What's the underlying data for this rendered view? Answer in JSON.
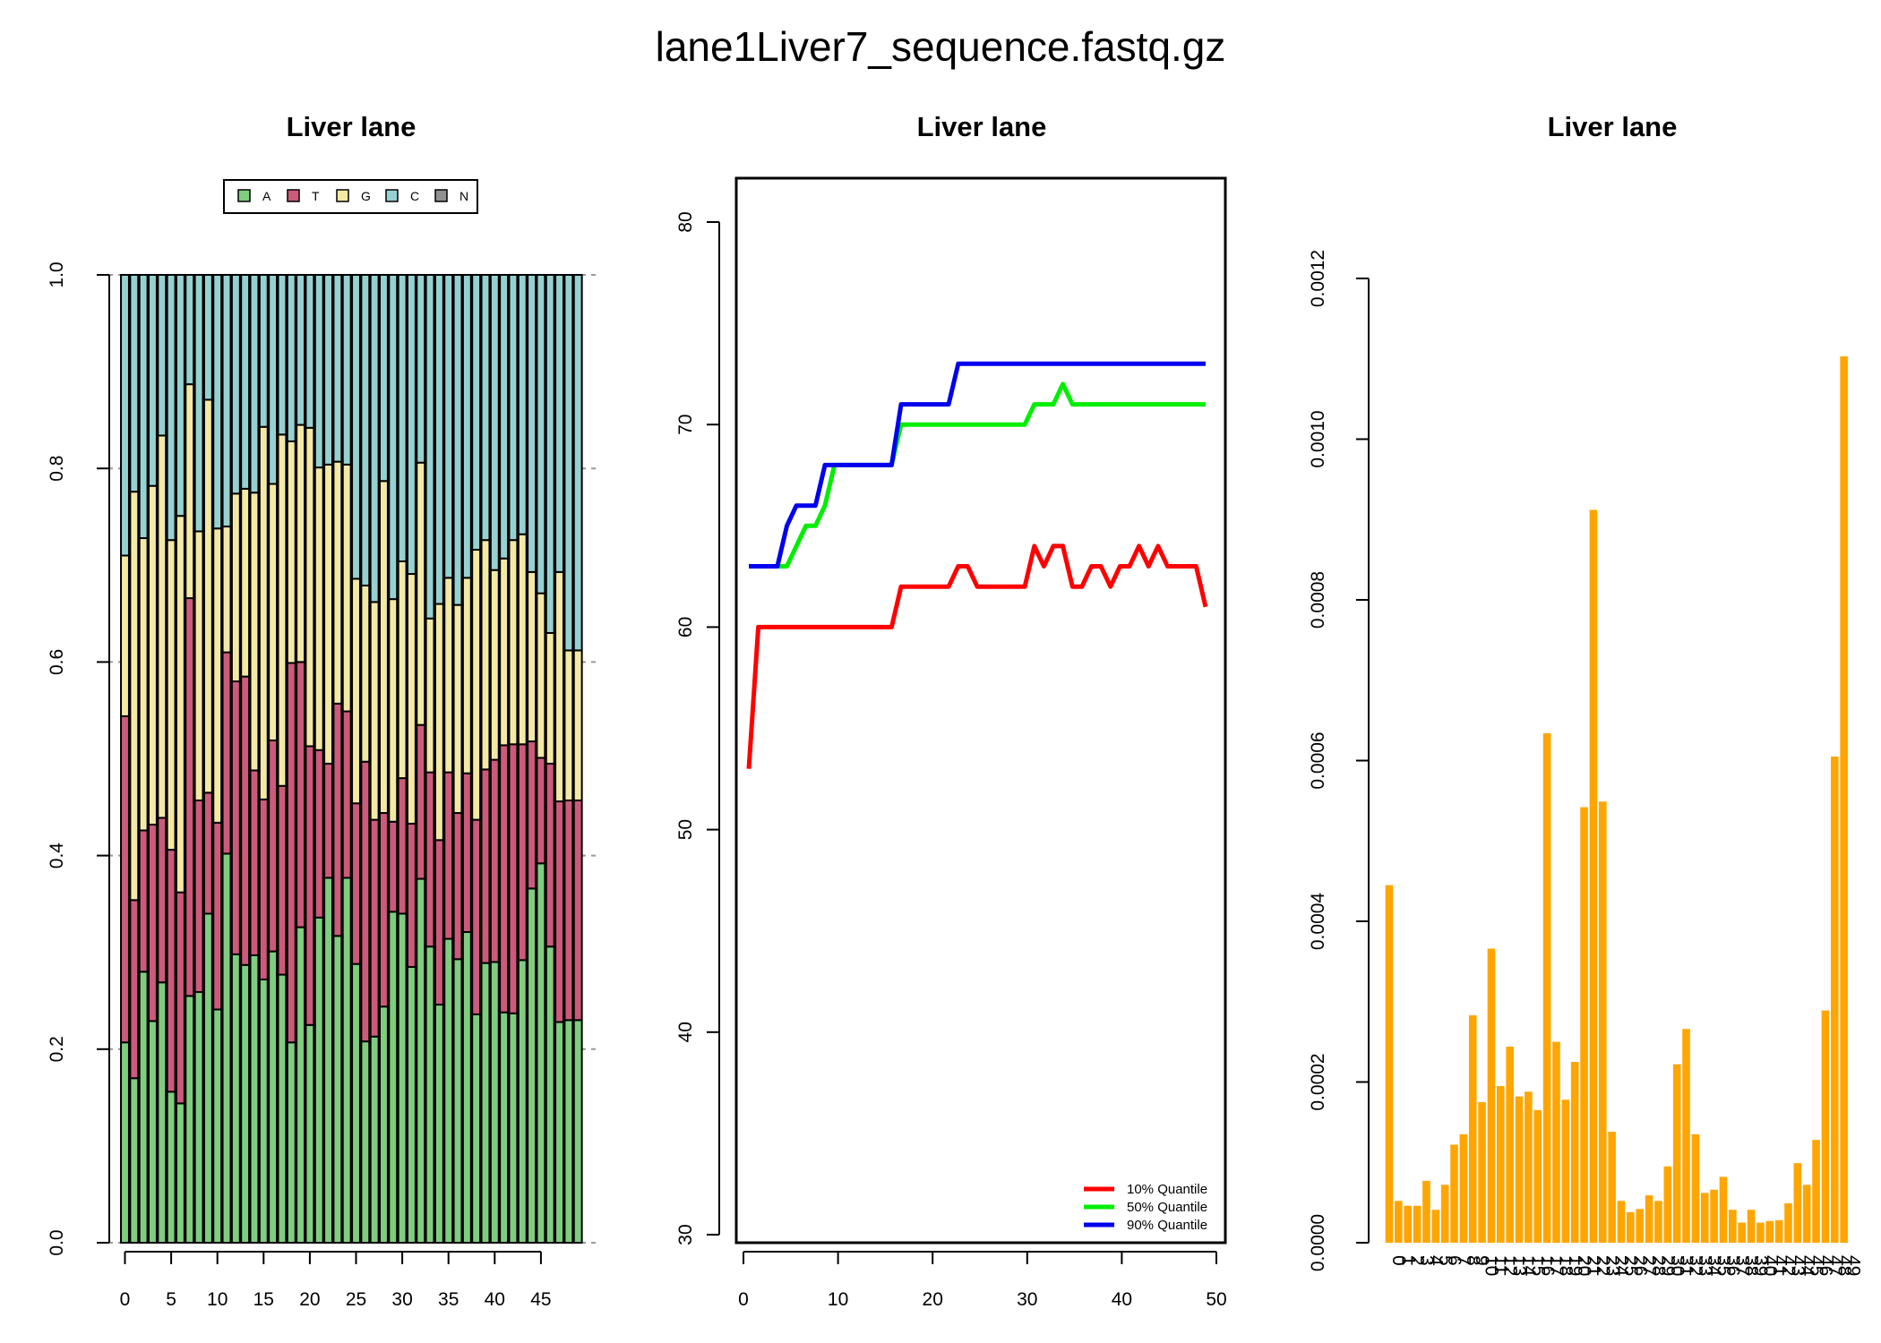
{
  "figure_title": "lane1Liver7_sequence.fastq.gz",
  "colors": {
    "A": "#7fcd7f",
    "T": "#cc5a7a",
    "G": "#f4e9a4",
    "C": "#96d1d1",
    "N": "#909090",
    "q10": "#ff0000",
    "q50": "#00ee00",
    "q90": "#0000ee",
    "bar": "#ffa500"
  },
  "chart_data": [
    {
      "type": "bar",
      "subtype": "stacked",
      "title": "Liver lane",
      "xlabel": "",
      "ylabel": "",
      "ylim": [
        0,
        1
      ],
      "x_ticks": [
        0,
        5,
        10,
        15,
        20,
        25,
        30,
        35,
        40,
        45
      ],
      "y_ticks": [
        "0.0",
        "0.2",
        "0.4",
        "0.6",
        "0.8",
        "1.0"
      ],
      "grid": "horizontal dashed at y ticks",
      "legend": {
        "position": "top",
        "items": [
          "A",
          "T",
          "G",
          "C",
          "N"
        ]
      },
      "categories": [
        0,
        1,
        2,
        3,
        4,
        5,
        6,
        7,
        8,
        9,
        10,
        11,
        12,
        13,
        14,
        15,
        16,
        17,
        18,
        19,
        20,
        21,
        22,
        23,
        24,
        25,
        26,
        27,
        28,
        29,
        30,
        31,
        32,
        33,
        34,
        35,
        36,
        37,
        38,
        39,
        40,
        41,
        42,
        43,
        44,
        45,
        46,
        47,
        48,
        49
      ],
      "series": [
        {
          "name": "A",
          "values": [
            0.207,
            0.17,
            0.28,
            0.229,
            0.269,
            0.156,
            0.144,
            0.255,
            0.259,
            0.34,
            0.241,
            0.402,
            0.298,
            0.287,
            0.297,
            0.272,
            0.301,
            0.277,
            0.207,
            0.326,
            0.225,
            0.336,
            0.377,
            0.317,
            0.377,
            0.288,
            0.208,
            0.213,
            0.244,
            0.342,
            0.34,
            0.285,
            0.376,
            0.306,
            0.246,
            0.314,
            0.293,
            0.321,
            0.236,
            0.289,
            0.29,
            0.238,
            0.237,
            0.292,
            0.366,
            0.392,
            0.306,
            0.228,
            0.23,
            0.23
          ]
        },
        {
          "name": "T",
          "values": [
            0.337,
            0.184,
            0.146,
            0.203,
            0.17,
            0.25,
            0.218,
            0.411,
            0.198,
            0.125,
            0.193,
            0.208,
            0.282,
            0.298,
            0.191,
            0.186,
            0.218,
            0.195,
            0.392,
            0.274,
            0.288,
            0.173,
            0.118,
            0.24,
            0.172,
            0.166,
            0.289,
            0.224,
            0.2,
            0.093,
            0.14,
            0.148,
            0.159,
            0.18,
            0.17,
            0.172,
            0.151,
            0.164,
            0.201,
            0.2,
            0.209,
            0.276,
            0.278,
            0.223,
            0.152,
            0.109,
            0.189,
            0.228,
            0.227,
            0.227
          ]
        },
        {
          "name": "G",
          "values": [
            0.166,
            0.422,
            0.302,
            0.35,
            0.395,
            0.32,
            0.389,
            0.221,
            0.278,
            0.406,
            0.304,
            0.13,
            0.194,
            0.194,
            0.287,
            0.385,
            0.265,
            0.363,
            0.229,
            0.245,
            0.329,
            0.292,
            0.309,
            0.25,
            0.255,
            0.232,
            0.182,
            0.225,
            0.343,
            0.23,
            0.224,
            0.258,
            0.271,
            0.159,
            0.244,
            0.201,
            0.215,
            0.202,
            0.279,
            0.237,
            0.196,
            0.193,
            0.211,
            0.217,
            0.175,
            0.17,
            0.135,
            0.237,
            0.155,
            0.155
          ]
        },
        {
          "name": "C",
          "values": [
            0.29,
            0.224,
            0.272,
            0.218,
            0.166,
            0.274,
            0.249,
            0.113,
            0.265,
            0.129,
            0.262,
            0.26,
            0.226,
            0.221,
            0.225,
            0.157,
            0.216,
            0.165,
            0.172,
            0.155,
            0.158,
            0.199,
            0.196,
            0.193,
            0.196,
            0.314,
            0.321,
            0.338,
            0.213,
            0.335,
            0.296,
            0.309,
            0.194,
            0.355,
            0.34,
            0.313,
            0.341,
            0.313,
            0.284,
            0.274,
            0.305,
            0.293,
            0.274,
            0.268,
            0.307,
            0.329,
            0.37,
            0.307,
            0.388,
            0.388
          ]
        },
        {
          "name": "N",
          "values": [
            0,
            0,
            0,
            0,
            0,
            0,
            0,
            0,
            0,
            0,
            0,
            0,
            0,
            0,
            0,
            0,
            0,
            0,
            0,
            0,
            0,
            0,
            0,
            0,
            0,
            0,
            0,
            0,
            0,
            0,
            0,
            0,
            0,
            0,
            0,
            0,
            0,
            0,
            0,
            0,
            0,
            0,
            0,
            0,
            0,
            0,
            0,
            0,
            0,
            0
          ]
        }
      ]
    },
    {
      "type": "line",
      "title": "Liver lane",
      "xlabel": "",
      "ylabel": "",
      "xlim": [
        1,
        50
      ],
      "ylim": [
        30,
        82
      ],
      "x_ticks": [
        0,
        10,
        20,
        30,
        40,
        50
      ],
      "y_ticks": [
        30,
        40,
        50,
        60,
        70,
        80
      ],
      "legend": {
        "position": "bottom-right"
      },
      "x": [
        1,
        2,
        3,
        4,
        5,
        6,
        7,
        8,
        9,
        10,
        11,
        12,
        13,
        14,
        15,
        16,
        17,
        18,
        19,
        20,
        21,
        22,
        23,
        24,
        25,
        26,
        27,
        28,
        29,
        30,
        31,
        32,
        33,
        34,
        35,
        36,
        37,
        38,
        39,
        40,
        41,
        42,
        43,
        44,
        45,
        46,
        47,
        48,
        49
      ],
      "series": [
        {
          "name": "10% Quantile",
          "color_key": "q10",
          "values": [
            53,
            60,
            60,
            60,
            60,
            60,
            60,
            60,
            60,
            60,
            60,
            60,
            60,
            60,
            60,
            60,
            62,
            62,
            62,
            62,
            62,
            62,
            63,
            63,
            62,
            62,
            62,
            62,
            62,
            62,
            64,
            63,
            64,
            64,
            62,
            62,
            63,
            63,
            62,
            63,
            63,
            64,
            63,
            64,
            63,
            63,
            63,
            63,
            61
          ]
        },
        {
          "name": "50% Quantile",
          "color_key": "q50",
          "values": [
            63,
            63,
            63,
            63,
            63,
            64,
            65,
            65,
            66,
            68,
            68,
            68,
            68,
            68,
            68,
            68,
            70,
            70,
            70,
            70,
            70,
            70,
            70,
            70,
            70,
            70,
            70,
            70,
            70,
            70,
            71,
            71,
            71,
            72,
            71,
            71,
            71,
            71,
            71,
            71,
            71,
            71,
            71,
            71,
            71,
            71,
            71,
            71,
            71
          ]
        },
        {
          "name": "90% Quantile",
          "color_key": "q90",
          "values": [
            63,
            63,
            63,
            63,
            65,
            66,
            66,
            66,
            68,
            68,
            68,
            68,
            68,
            68,
            68,
            68,
            71,
            71,
            71,
            71,
            71,
            71,
            73,
            73,
            73,
            73,
            73,
            73,
            73,
            73,
            73,
            73,
            73,
            73,
            73,
            73,
            73,
            73,
            73,
            73,
            73,
            73,
            73,
            73,
            73,
            73,
            73,
            73,
            73
          ]
        }
      ]
    },
    {
      "type": "bar",
      "title": "Liver lane",
      "xlabel": "",
      "ylabel": "",
      "ylim": [
        0,
        0.0012
      ],
      "y_ticks": [
        "0.0000",
        "0.0002",
        "0.0004",
        "0.0006",
        "0.0008",
        "0.0010",
        "0.0012"
      ],
      "categories": [
        "0",
        "1",
        "2",
        "3",
        "4",
        "5",
        "6",
        "7",
        "8",
        "9",
        "10",
        "11",
        "12",
        "13",
        "14",
        "15",
        "16",
        "17",
        "18",
        "19",
        "20",
        "21",
        "22",
        "23",
        "24",
        "25",
        "26",
        "27",
        "28",
        "29",
        "30",
        "31",
        "32",
        "33",
        "34",
        "35",
        "36",
        "37",
        "38",
        "39",
        "40",
        "41",
        "42",
        "43",
        "44",
        "45",
        "46",
        "47",
        "48",
        "49"
      ],
      "values": [
        0.000445,
        5.2e-05,
        4.6e-05,
        4.6e-05,
        7.7e-05,
        4.1e-05,
        7.2e-05,
        0.000122,
        0.000135,
        0.000283,
        0.000175,
        0.000366,
        0.000195,
        0.000244,
        0.000182,
        0.000188,
        0.000165,
        0.000634,
        0.00025,
        0.000178,
        0.000225,
        0.000542,
        0.000912,
        0.000549,
        0.000138,
        5.2e-05,
        3.8e-05,
        4.2e-05,
        5.9e-05,
        5.2e-05,
        9.5e-05,
        0.000222,
        0.000266,
        0.000135,
        6.2e-05,
        6.6e-05,
        8.2e-05,
        4.1e-05,
        2.5e-05,
        4.1e-05,
        2.5e-05,
        2.7e-05,
        2.8e-05,
        4.9e-05,
        9.9e-05,
        7.2e-05,
        0.000128,
        0.000289,
        0.000605,
        0.001103
      ]
    }
  ]
}
